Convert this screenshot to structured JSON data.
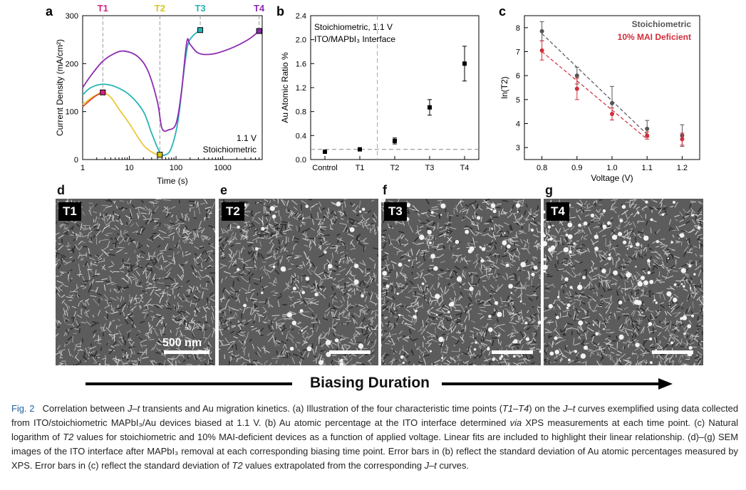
{
  "figure": {
    "panels": [
      "a",
      "b",
      "c",
      "d",
      "e",
      "f",
      "g"
    ],
    "arrow_label": "Biasing Duration",
    "scale_bar_label": "500 nm",
    "sem_labels": [
      "T1",
      "T2",
      "T3",
      "T4"
    ]
  },
  "caption": {
    "fig_label": "Fig. 2",
    "text_1": "Correlation between ",
    "jt": "J–t",
    "text_2": " transients and Au migration kinetics. (a) Illustration of the four characteristic time points (",
    "t1t4": "T1–T4",
    "text_3": ") on the ",
    "text_4": " curves exemplified using data collected from ITO/stoichiometric MAPbI₃/Au devices biased at 1.1 V. (b) Au atomic percentage at the ITO interface determined ",
    "via": "via",
    "text_5": " XPS measurements at each time point. (c) Natural logarithm of ",
    "t2": "T2",
    "text_6": " values for stoichiometric and 10% MAI-deficient devices as a function of applied voltage. Linear fits are included to highlight their linear relationship. (d)–(g) SEM images of the ITO interface after MAPbI₃ removal at each corresponding biasing time point. Error bars in (b) reflect the standard deviation of Au atomic percentages measured by XPS. Error bars in (c) reflect the standard deviation of ",
    "text_7": " values extrapolated from the corresponding ",
    "text_8": " curves."
  },
  "chart_data": [
    {
      "panel": "a",
      "type": "line",
      "xlabel": "Time (s)",
      "ylabel": "Current Density (mA/cm²)",
      "x_scale": "log",
      "xlim": [
        1,
        7000
      ],
      "ylim": [
        0,
        300
      ],
      "x_ticks": [
        "1",
        "10",
        "100",
        "1000"
      ],
      "y_ticks": [
        "0",
        "100",
        "200",
        "300"
      ],
      "annotation": [
        "1.1 V",
        "Stoichiometric"
      ],
      "time_points": [
        {
          "label": "T1",
          "x": 2.7,
          "y": 140,
          "color": "#d6267d"
        },
        {
          "label": "T2",
          "x": 45,
          "y": 10,
          "color": "#d9c51f"
        },
        {
          "label": "T3",
          "x": 330,
          "y": 270,
          "color": "#27b3b5"
        },
        {
          "label": "T4",
          "x": 6000,
          "y": 268,
          "color": "#8e2bb0"
        }
      ],
      "series": [
        {
          "color": "#e8c93a",
          "x": [
            1,
            1.5,
            2,
            2.7,
            4,
            6,
            10,
            20,
            35,
            45
          ],
          "y": [
            115,
            128,
            135,
            140,
            130,
            105,
            75,
            30,
            12,
            10
          ]
        },
        {
          "color": "#e04a2a",
          "x": [
            1,
            1.5,
            2,
            2.7
          ],
          "y": [
            110,
            125,
            134,
            140
          ]
        },
        {
          "color": "#27b3b5",
          "x": [
            1,
            1.5,
            2.7,
            5,
            10,
            20,
            30,
            45,
            60,
            80,
            110,
            150,
            180,
            230,
            330
          ],
          "y": [
            135,
            150,
            157,
            152,
            135,
            100,
            55,
            15,
            10,
            25,
            80,
            190,
            240,
            258,
            270
          ]
        },
        {
          "color": "#8e2bb0",
          "x": [
            1,
            1.5,
            2.7,
            5,
            8,
            15,
            25,
            40,
            50,
            70,
            100,
            130,
            170,
            200,
            300,
            600,
            1500,
            3500,
            6000
          ],
          "y": [
            150,
            175,
            205,
            222,
            226,
            215,
            185,
            120,
            65,
            62,
            75,
            140,
            245,
            240,
            222,
            220,
            232,
            250,
            268
          ]
        }
      ]
    },
    {
      "panel": "b",
      "type": "scatter",
      "ylabel": "Au Atomic Ratio %",
      "ylim": [
        0,
        2.4
      ],
      "y_ticks": [
        "0.0",
        "0.4",
        "0.8",
        "1.2",
        "1.6",
        "2.0",
        "2.4"
      ],
      "categories": [
        "Control",
        "T1",
        "T2",
        "T3",
        "T4"
      ],
      "values": [
        0.13,
        0.17,
        0.31,
        0.87,
        1.6
      ],
      "errors": [
        0.02,
        0.02,
        0.05,
        0.13,
        0.29
      ],
      "reference_line": 0.17,
      "annotation": [
        "Stoichiometric, 1.1 V",
        "ITO/MAPbI₃ Interface"
      ]
    },
    {
      "panel": "c",
      "type": "scatter",
      "xlabel": "Voltage (V)",
      "ylabel": "ln(T2)",
      "xlim": [
        0.75,
        1.25
      ],
      "ylim": [
        2.5,
        8.5
      ],
      "x_ticks": [
        "0.8",
        "0.9",
        "1.0",
        "1.1",
        "1.2"
      ],
      "y_ticks": [
        "3",
        "4",
        "5",
        "6",
        "7",
        "8"
      ],
      "x": [
        0.8,
        0.9,
        1.0,
        1.1,
        1.2
      ],
      "series": [
        {
          "name": "Stoichiometric",
          "color": "#555555",
          "values": [
            7.85,
            6.0,
            4.85,
            3.78,
            3.5
          ],
          "errors": [
            0.4,
            0.35,
            0.7,
            0.35,
            0.45
          ],
          "fit": [
            [
              0.8,
              7.75
            ],
            [
              1.1,
              3.55
            ]
          ]
        },
        {
          "name": "10% MAI Deficient",
          "color": "#d22e3a",
          "values": [
            7.05,
            5.45,
            4.4,
            3.5,
            3.35
          ],
          "errors": [
            0.4,
            0.45,
            0.25,
            0.15,
            0.25
          ],
          "fit": [
            [
              0.8,
              7.0
            ],
            [
              1.1,
              3.35
            ]
          ]
        }
      ]
    }
  ]
}
